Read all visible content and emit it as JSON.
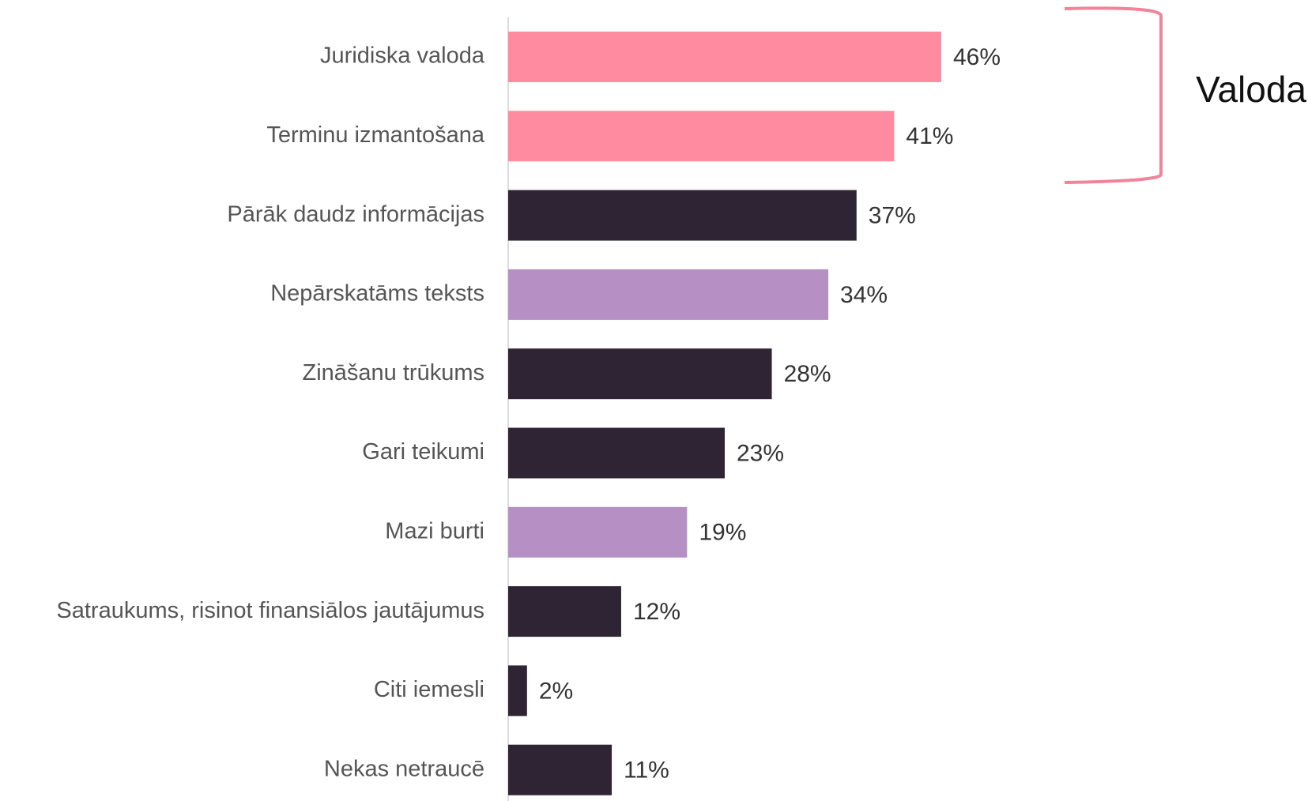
{
  "chart_data": {
    "type": "bar",
    "orientation": "horizontal",
    "categories": [
      "Juridiska valoda",
      "Terminu izmantošana",
      "Pārāk daudz informācijas",
      "Nepārskatāms teksts",
      "Zināšanu trūkums",
      "Gari teikumi",
      "Mazi burti",
      "Satraukums, risinot finansiālos jautājumus",
      "Citi iemesli",
      "Nekas netraucē"
    ],
    "values": [
      46,
      41,
      37,
      34,
      28,
      23,
      19,
      12,
      2,
      11
    ],
    "value_labels": [
      "46%",
      "41%",
      "37%",
      "34%",
      "28%",
      "23%",
      "19%",
      "12%",
      "2%",
      "11%"
    ],
    "colors": [
      "#ff8ba1",
      "#ff8ba1",
      "#2f2433",
      "#b690c5",
      "#2f2433",
      "#2f2433",
      "#b690c5",
      "#2f2433",
      "#2f2433",
      "#2f2433"
    ],
    "annotation": "Valoda",
    "annotation_color": "#f0849b"
  }
}
